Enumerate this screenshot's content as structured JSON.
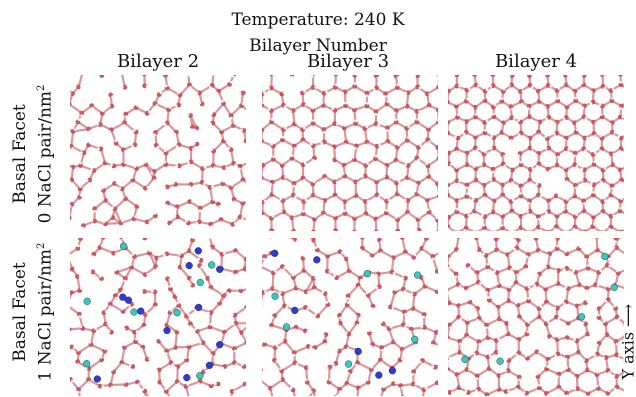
{
  "header": {
    "temperature": "Temperature: 240 K",
    "bilayer_heading": "Bilayer Number"
  },
  "columns": [
    {
      "label": "Bilayer 2"
    },
    {
      "label": "Bilayer 3"
    },
    {
      "label": "Bilayer 4"
    }
  ],
  "rows": [
    {
      "line1": "Basal Facet",
      "line2_prefix": "0 NaCl pair/nm",
      "line2_sup": "2"
    },
    {
      "line1": "Basal Facet",
      "line2_prefix": "1 NaCl pair/nm",
      "line2_sup": "2"
    }
  ],
  "axis": {
    "label": "Y axis ⟶"
  },
  "colors": {
    "oxygen": "#c9585e",
    "bond": "#d9999c",
    "hydrogen": "#efefef",
    "sodium": "#2f3bd6",
    "chloride": "#3cc6c0"
  }
}
